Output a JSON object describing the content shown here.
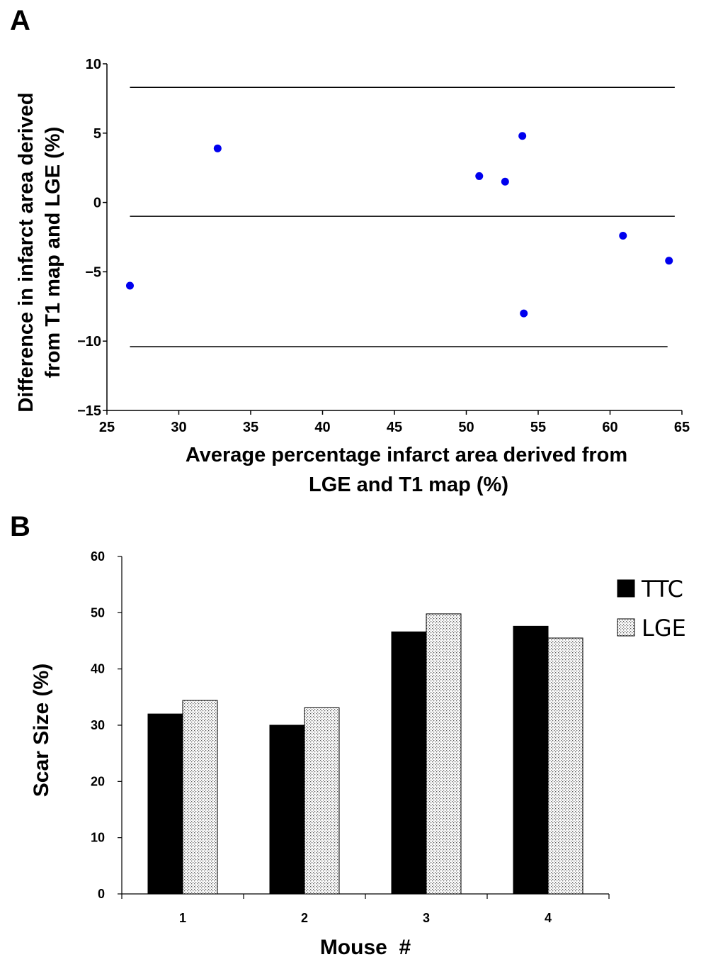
{
  "figure": {
    "panel_a_label": "A",
    "panel_b_label": "B"
  },
  "chart_data": [
    {
      "type": "scatter",
      "panel": "A",
      "xlabel": [
        "Average percentage infarct area derived from",
        "LGE and T1 map (%)"
      ],
      "ylabel": [
        "Difference in infarct area derived",
        "from T1 map and LGE (%)"
      ],
      "xlim": [
        25,
        65
      ],
      "ylim": [
        -15,
        10
      ],
      "xticks": [
        25,
        30,
        35,
        40,
        45,
        50,
        55,
        60,
        65
      ],
      "yticks": [
        10,
        5,
        0,
        -5,
        -10,
        -15
      ],
      "ytick_labels": [
        "10",
        "5",
        "0",
        "−5",
        "−10",
        "−15"
      ],
      "points": [
        {
          "x": 26.6,
          "y": -6.0
        },
        {
          "x": 32.7,
          "y": 3.9
        },
        {
          "x": 50.9,
          "y": 1.9
        },
        {
          "x": 52.7,
          "y": 1.5
        },
        {
          "x": 53.9,
          "y": 4.8
        },
        {
          "x": 54.0,
          "y": -8.0
        },
        {
          "x": 60.9,
          "y": -2.4
        },
        {
          "x": 64.1,
          "y": -4.2
        }
      ],
      "point_color": "#0000ee",
      "reference_lines": [
        {
          "y": 8.3,
          "x_from": 26.6,
          "x_to": 64.5
        },
        {
          "y": -1.0,
          "x_from": 26.6,
          "x_to": 64.5
        },
        {
          "y": -10.4,
          "x_from": 26.6,
          "x_to": 64.0
        }
      ],
      "grid": false
    },
    {
      "type": "bar",
      "panel": "B",
      "categories": [
        "1",
        "2",
        "3",
        "4"
      ],
      "series": [
        {
          "name": "TTC",
          "values": [
            32.0,
            30.0,
            46.6,
            47.6
          ],
          "fill": "#000000"
        },
        {
          "name": "LGE",
          "values": [
            34.4,
            33.1,
            49.8,
            45.5
          ],
          "fill": "dotted"
        }
      ],
      "xlabel": "Mouse  #",
      "ylabel": "Scar Size (%)",
      "ylim": [
        0,
        60
      ],
      "yticks": [
        0,
        10,
        20,
        30,
        40,
        50,
        60
      ],
      "legend_position": "top-right",
      "grid": false
    }
  ]
}
